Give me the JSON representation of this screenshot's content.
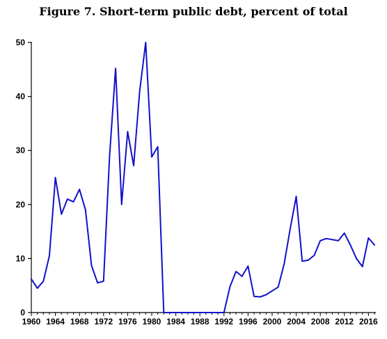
{
  "chart_data": {
    "type": "line",
    "title": "Figure 7. Short-term public debt, percent of total",
    "xlabel": "",
    "ylabel": "",
    "xlim": [
      1960,
      2017
    ],
    "ylim": [
      0,
      50
    ],
    "x_ticks": [
      1960,
      1964,
      1968,
      1972,
      1976,
      1980,
      1984,
      1988,
      1992,
      1996,
      2000,
      2004,
      2008,
      2012,
      2016
    ],
    "y_ticks": [
      0,
      10,
      20,
      30,
      40,
      50
    ],
    "grid": false,
    "legend": false,
    "series": [
      {
        "color": "#1010cc",
        "x": [
          1960,
          1961,
          1962,
          1963,
          1964,
          1965,
          1966,
          1967,
          1968,
          1969,
          1970,
          1971,
          1972,
          1973,
          1974,
          1975,
          1976,
          1977,
          1978,
          1979,
          1980,
          1981,
          1982,
          1983,
          1984,
          1985,
          1986,
          1987,
          1988,
          1989,
          1990,
          1991,
          1992,
          1993,
          1994,
          1995,
          1996,
          1997,
          1998,
          1999,
          2000,
          2001,
          2002,
          2003,
          2004,
          2005,
          2006,
          2007,
          2008,
          2009,
          2010,
          2011,
          2012,
          2013,
          2014,
          2015,
          2016,
          2017
        ],
        "values": [
          6.2,
          4.5,
          5.8,
          10.5,
          25.0,
          18.2,
          21.0,
          20.5,
          22.8,
          19.0,
          8.7,
          5.5,
          5.8,
          29.0,
          45.2,
          20.0,
          33.5,
          27.2,
          41.0,
          50.0,
          28.8,
          30.7,
          0,
          0,
          0,
          0,
          0,
          0,
          0,
          0,
          0,
          0,
          0,
          4.8,
          7.6,
          6.7,
          8.6,
          3.0,
          2.9,
          3.3,
          4.0,
          4.7,
          9.0,
          15.5,
          21.5,
          9.5,
          9.7,
          10.6,
          13.3,
          13.7,
          13.5,
          13.3,
          14.7,
          12.5,
          10.0,
          8.5,
          13.8,
          12.5
        ]
      }
    ]
  }
}
